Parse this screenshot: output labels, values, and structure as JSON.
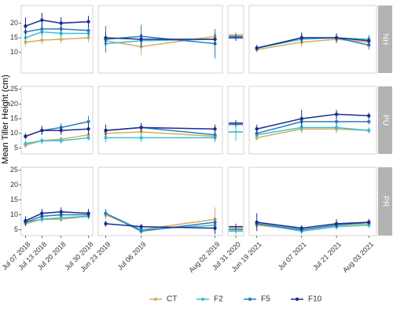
{
  "chart_data": {
    "type": "line",
    "y_label": "Mean Tiller Height (cm)",
    "ylim": [
      3,
      26
    ],
    "series": [
      {
        "name": "CT",
        "color": "#d2ae62"
      },
      {
        "name": "F2",
        "color": "#3cbfd0"
      },
      {
        "name": "F5",
        "color": "#2b7eb8"
      },
      {
        "name": "F10",
        "color": "#1c2c8c"
      }
    ],
    "columns": [
      {
        "x": [
          "Jul 07 2018",
          "Jul 13 2018",
          "Jul 20 2018",
          "Jul 30 2018"
        ]
      },
      {
        "x": [
          "Jun 23 2019",
          "Jul 06 2019",
          "Aug 02 2019"
        ]
      },
      {
        "x": [
          "Jul 31 2020"
        ]
      },
      {
        "x": [
          "Jun 19 2021",
          "Jul 07 2021",
          "Jul 21 2021",
          "Aug 03 2021"
        ]
      }
    ],
    "rows": [
      {
        "label": "NH",
        "yticks": [
          10,
          15,
          20
        ],
        "panels": [
          {
            "values": [
              [
                13.5,
                14.2,
                14.5,
                15
              ],
              [
                15,
                17,
                16.5,
                16.5
              ],
              [
                17,
                18,
                18,
                17.5
              ],
              [
                19,
                21,
                20,
                20.5
              ]
            ],
            "errors": [
              [
                1.5,
                1.5,
                1.5,
                1.5
              ],
              [
                1.5,
                1.5,
                1.5,
                1.5
              ],
              [
                2,
                2,
                2,
                2
              ],
              [
                3,
                2.5,
                2,
                2
              ]
            ]
          },
          {
            "values": [
              [
                14,
                12,
                15.5
              ],
              [
                13,
                14,
                14.5
              ],
              [
                14.5,
                15.5,
                13
              ],
              [
                15,
                14.5,
                14.5
              ]
            ],
            "errors": [
              [
                2,
                3,
                2
              ],
              [
                1.5,
                2,
                2
              ],
              [
                4.5,
                4,
                5
              ],
              [
                2,
                2,
                2
              ]
            ]
          },
          {
            "values": [
              [
                16
              ],
              [
                15
              ],
              [
                15.5
              ],
              [
                15
              ]
            ],
            "errors": [
              [
                1
              ],
              [
                1
              ],
              [
                1
              ],
              [
                1
              ]
            ]
          },
          {
            "values": [
              [
                11,
                13.5,
                14.5,
                13.5
              ],
              [
                11.5,
                14.5,
                15,
                14.5
              ],
              [
                11.5,
                15,
                15,
                12.5
              ],
              [
                11.5,
                15,
                15,
                14
              ]
            ],
            "errors": [
              [
                1,
                1.5,
                1.5,
                1.5
              ],
              [
                1,
                1.5,
                1.5,
                1.5
              ],
              [
                1,
                2,
                1.5,
                1.5
              ],
              [
                1,
                1.5,
                1.5,
                1.5
              ]
            ]
          }
        ]
      },
      {
        "label": "PU",
        "yticks": [
          5,
          10,
          15,
          20,
          25
        ],
        "panels": [
          {
            "values": [
              [
                6,
                7.5,
                8,
                9.5
              ],
              [
                6.5,
                7.5,
                7.5,
                8.5
              ],
              [
                9,
                11,
                12,
                14
              ],
              [
                9,
                11,
                11,
                11.5
              ]
            ],
            "errors": [
              [
                1,
                1,
                1,
                1
              ],
              [
                1,
                1,
                1,
                1
              ],
              [
                1,
                1.5,
                1.5,
                2
              ],
              [
                1,
                1.5,
                1.5,
                2
              ]
            ]
          },
          {
            "values": [
              [
                10,
                10.5,
                9
              ],
              [
                8.5,
                8.5,
                8.5
              ],
              [
                11,
                12,
                9.5
              ],
              [
                11,
                12,
                11.5
              ]
            ],
            "errors": [
              [
                1.5,
                1.5,
                1.5
              ],
              [
                1.5,
                1.5,
                1.5
              ],
              [
                1.5,
                1.5,
                1.5
              ],
              [
                2,
                1.5,
                1.5
              ]
            ]
          },
          {
            "values": [
              [
                10.5
              ],
              [
                10.5
              ],
              [
                13
              ],
              [
                13.5
              ]
            ],
            "errors": [
              [
                2
              ],
              [
                3
              ],
              [
                1
              ],
              [
                1
              ]
            ]
          },
          {
            "values": [
              [
                8.5,
                11.5,
                11.5,
                11
              ],
              [
                9.5,
                12,
                12,
                11
              ],
              [
                10,
                14,
                14,
                14
              ],
              [
                11.5,
                15,
                16.5,
                16
              ]
            ],
            "errors": [
              [
                1,
                1.5,
                1.5,
                1
              ],
              [
                1,
                1.5,
                1.5,
                1
              ],
              [
                1,
                1.5,
                1.5,
                1
              ],
              [
                1.5,
                3,
                1.5,
                1
              ]
            ]
          }
        ]
      },
      {
        "label": "PR",
        "yticks": [
          5,
          10,
          15,
          20,
          25
        ],
        "panels": [
          {
            "values": [
              [
                7,
                8.5,
                8.5,
                9.5
              ],
              [
                7.5,
                8.5,
                9,
                9.5
              ],
              [
                7.5,
                9.5,
                10,
                10
              ],
              [
                8,
                10.5,
                11,
                10.5
              ]
            ],
            "errors": [
              [
                1,
                1,
                1,
                1
              ],
              [
                1,
                1,
                1,
                1
              ],
              [
                1,
                1,
                1,
                1
              ],
              [
                1.5,
                1.5,
                1.5,
                1.5
              ]
            ]
          },
          {
            "values": [
              [
                10,
                5,
                8.5
              ],
              [
                10.5,
                5,
                6.5
              ],
              [
                10.5,
                4.5,
                7.5
              ],
              [
                7,
                6,
                5.5
              ]
            ],
            "errors": [
              [
                1.5,
                1,
                4
              ],
              [
                1,
                1,
                1.5
              ],
              [
                1.5,
                1,
                1.5
              ],
              [
                1,
                1,
                2
              ]
            ]
          },
          {
            "values": [
              [
                5.5
              ],
              [
                4.5
              ],
              [
                5
              ],
              [
                6
              ]
            ],
            "errors": [
              [
                1
              ],
              [
                1
              ],
              [
                1
              ],
              [
                1
              ]
            ]
          },
          {
            "values": [
              [
                6.5,
                5,
                6.5,
                7
              ],
              [
                7,
                4.5,
                6,
                6.5
              ],
              [
                7,
                5,
                6.5,
                7.5
              ],
              [
                7.5,
                5.5,
                7,
                7.5
              ]
            ],
            "errors": [
              [
                1,
                1,
                1,
                1
              ],
              [
                1,
                1,
                1,
                1
              ],
              [
                1,
                1,
                1,
                1
              ],
              [
                3,
                1,
                1.5,
                1
              ]
            ]
          }
        ]
      }
    ]
  }
}
